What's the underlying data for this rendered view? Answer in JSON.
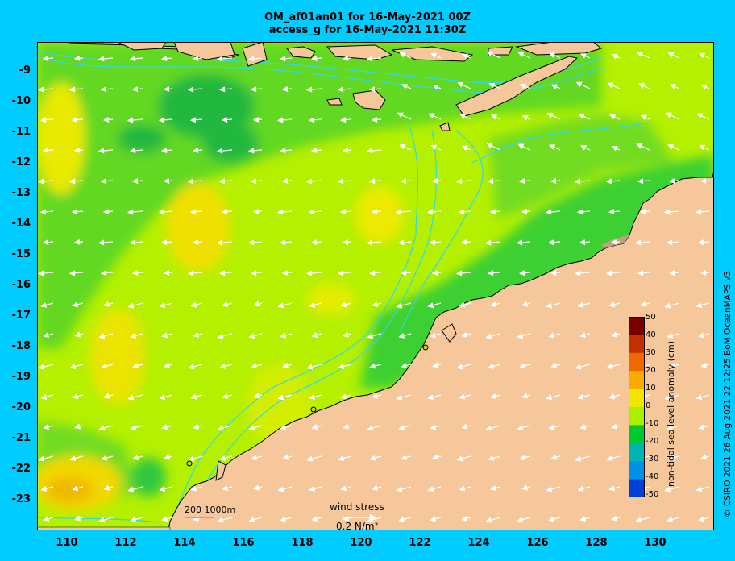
{
  "title_line1": "OM_af01an01 for 16-May-2021 00Z",
  "title_line2": "access_g for 16-May-2021 11:30Z",
  "y_axis_labels": [
    "-9",
    "-10",
    "-11",
    "-12",
    "-13",
    "-14",
    "-15",
    "-16",
    "-17",
    "-18",
    "-19",
    "-20",
    "-21",
    "-22",
    "-23"
  ],
  "x_axis_labels": [
    "110",
    "112",
    "114",
    "116",
    "118",
    "120",
    "122",
    "124",
    "126",
    "128",
    "130"
  ],
  "colorbar": {
    "title": "non-tidal sea level anomaly (cm)",
    "ticks": [
      "50",
      "40",
      "30",
      "20",
      "10",
      "0",
      "-10",
      "-20",
      "-30",
      "-40",
      "-50"
    ],
    "colors": [
      "#7a0000",
      "#c23000",
      "#ee6a00",
      "#f8ac00",
      "#f2e600",
      "#a8f000",
      "#00c830",
      "#00b4b4",
      "#0090e8",
      "#0040d8",
      "#000090"
    ]
  },
  "legend": {
    "isobath_label": "200  1000m",
    "wind_label": "wind stress",
    "wind_value": "0.2 N/m²"
  },
  "credit": "© CSIRO 2021   26 Aug 2021 22:12:25 BoM OceanMAPS v3",
  "colors": {
    "background": "#00ccff",
    "land": "#f5c79b",
    "sea_green": "#20c840",
    "sea_lime": "#a8f000",
    "sea_yellow": "#f2e600",
    "isobath": "#30d8e8"
  }
}
